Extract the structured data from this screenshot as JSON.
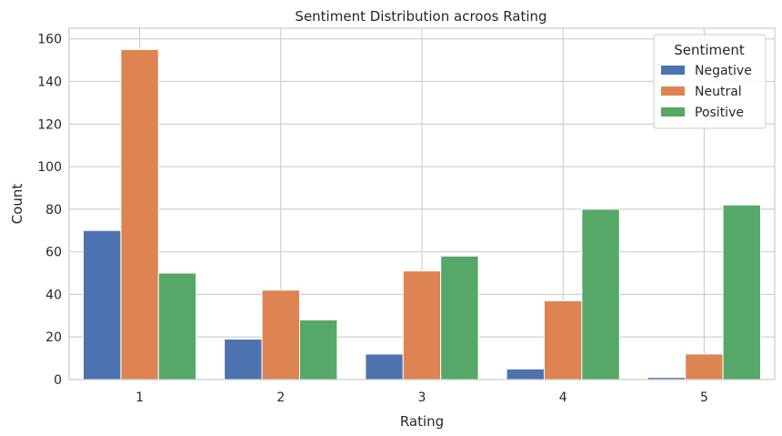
{
  "chart_data": {
    "type": "bar",
    "title": "Sentiment Distribution acroos Rating",
    "xlabel": "Rating",
    "ylabel": "Count",
    "categories": [
      "1",
      "2",
      "3",
      "4",
      "5"
    ],
    "ylim": [
      0,
      165
    ],
    "yticks": [
      0,
      20,
      40,
      60,
      80,
      100,
      120,
      140,
      160
    ],
    "grid": true,
    "legend": {
      "title": "Sentiment",
      "placement": "top-right"
    },
    "series": [
      {
        "name": "Negative",
        "color": "#4c72b0",
        "values": [
          70,
          19,
          12,
          5,
          1
        ]
      },
      {
        "name": "Neutral",
        "color": "#dd8452",
        "values": [
          155,
          42,
          51,
          37,
          12
        ]
      },
      {
        "name": "Positive",
        "color": "#55a868",
        "values": [
          50,
          28,
          58,
          80,
          82
        ]
      }
    ]
  }
}
